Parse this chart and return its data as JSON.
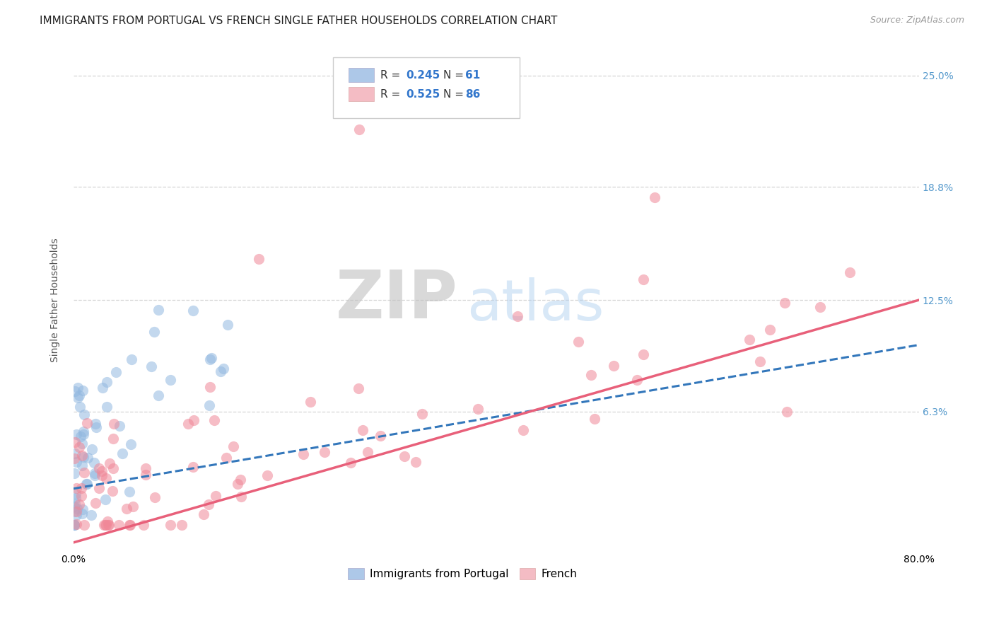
{
  "title": "IMMIGRANTS FROM PORTUGAL VS FRENCH SINGLE FATHER HOUSEHOLDS CORRELATION CHART",
  "source": "Source: ZipAtlas.com",
  "ylabel": "Single Father Households",
  "xlim": [
    0.0,
    0.8
  ],
  "ylim": [
    -0.015,
    0.265
  ],
  "xtick_labels": [
    "0.0%",
    "",
    "",
    "",
    "80.0%"
  ],
  "xtick_vals": [
    0.0,
    0.2,
    0.4,
    0.6,
    0.8
  ],
  "ytick_vals": [
    0.25,
    0.188,
    0.125,
    0.063
  ],
  "ytick_labels": [
    "25.0%",
    "18.8%",
    "12.5%",
    "6.3%"
  ],
  "background_color": "#ffffff",
  "grid_color": "#cccccc",
  "title_fontsize": 11,
  "axis_label_fontsize": 10,
  "tick_fontsize": 10,
  "legend_fontsize": 11,
  "source_fontsize": 9,
  "scatter_alpha": 0.55,
  "scatter_size": 120,
  "blue_scatter_color": "#92b8e0",
  "pink_scatter_color": "#f08898",
  "blue_line_color": "#3377bb",
  "pink_line_color": "#e8607a",
  "right_ytick_color": "#5599cc",
  "blue_legend_color": "#adc8e8",
  "pink_legend_color": "#f4bcc4",
  "pink_line_start_y": -0.01,
  "pink_line_end_y": 0.125,
  "blue_line_start_y": 0.02,
  "blue_line_end_y": 0.1
}
